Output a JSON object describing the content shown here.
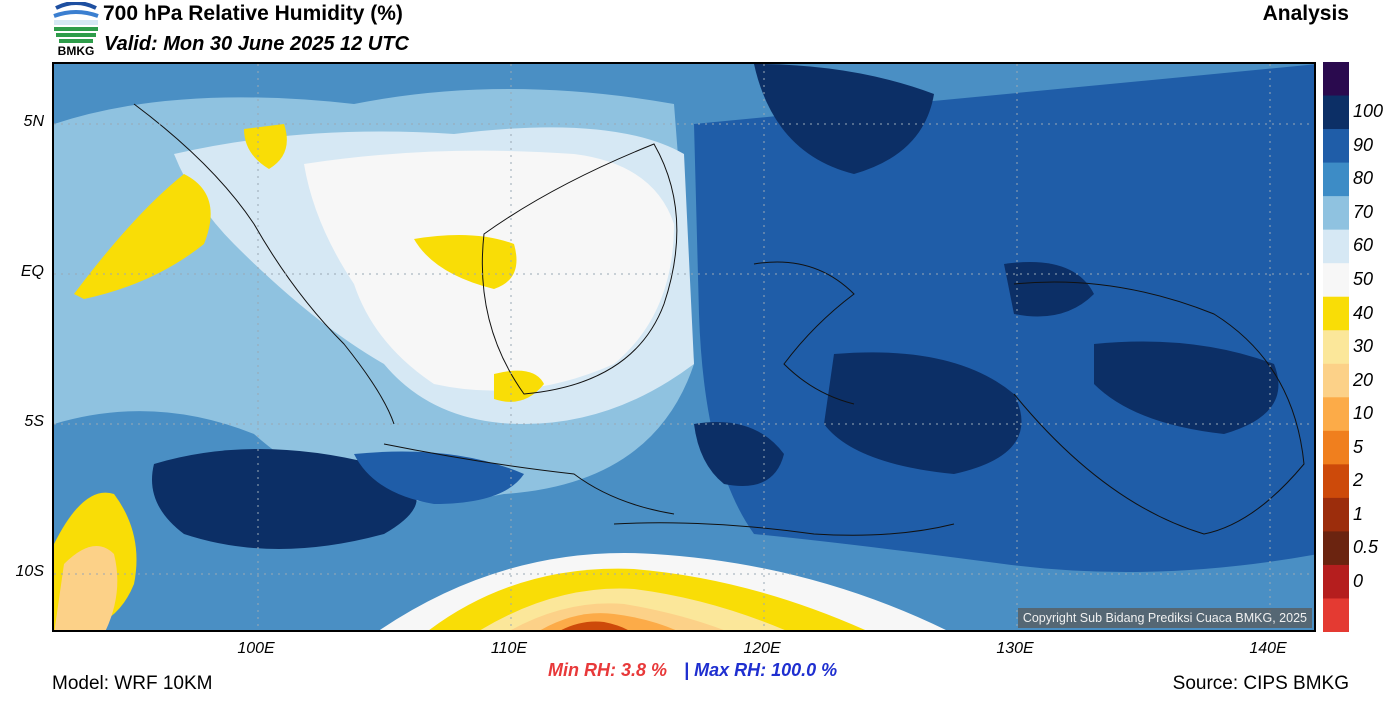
{
  "header": {
    "title": "700 hPa Relative Humidity (%)",
    "valid": "Valid: Mon 30 June 2025 12 UTC",
    "analysis": "Analysis",
    "logo_text": "BMKG"
  },
  "map": {
    "lat_labels": [
      "5N",
      "EQ",
      "5S",
      "10S"
    ],
    "lon_labels": [
      "100E",
      "110E",
      "120E",
      "130E",
      "140E"
    ],
    "copyright": "Copyright Sub Bidang Prediksi Cuaca BMKG, 2025"
  },
  "colorbar": {
    "labels": [
      "100",
      "90",
      "80",
      "70",
      "60",
      "50",
      "40",
      "30",
      "20",
      "10",
      "5",
      "2",
      "1",
      "0.5",
      "0"
    ],
    "colors": [
      "#2a0a4e",
      "#0c2f66",
      "#1f5da8",
      "#3d8cc6",
      "#8fc2e0",
      "#d6e8f4",
      "#f7f7f7",
      "#f9dd06",
      "#fbe79a",
      "#fcd188",
      "#fcab48",
      "#f07f1e",
      "#cd4a0a",
      "#9c2d0c",
      "#6b2410",
      "#b51e1e",
      "#e43a32"
    ]
  },
  "footer": {
    "model": "Model: WRF 10KM",
    "source": "Source: CIPS BMKG",
    "min_label": "Min RH:   3.8 %",
    "separator": "|",
    "max_label": "Max RH: 100.0 %"
  }
}
